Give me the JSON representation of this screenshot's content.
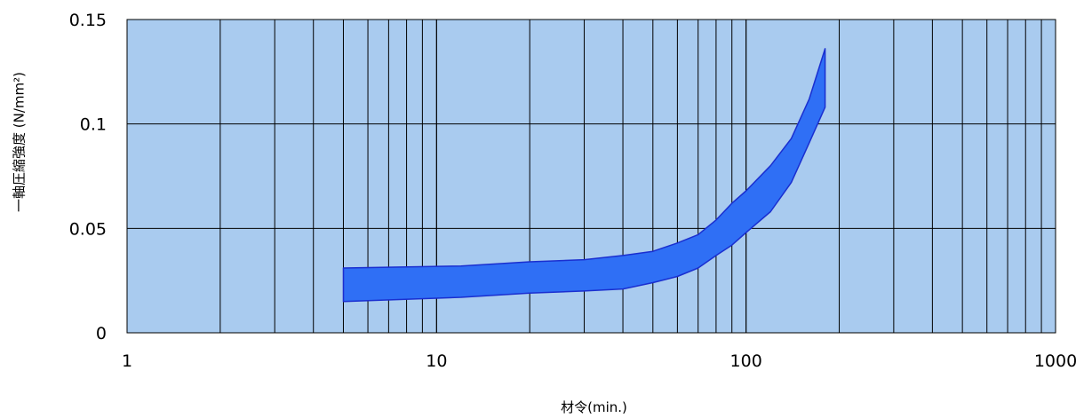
{
  "chart_data": {
    "type": "area",
    "x_scale": "log",
    "xlim": [
      1,
      1000
    ],
    "ylim": [
      0,
      0.15
    ],
    "x_ticks": [
      "1",
      "10",
      "100",
      "1000"
    ],
    "y_ticks": [
      "0",
      "0.05",
      "0.1",
      "0.15"
    ],
    "xlabel": "材令(min.)",
    "ylabel": "一軸圧縮強度 (N/mm²)",
    "grid": true,
    "plot_background": "#a9cbef",
    "band_fill": "#2f6ff5",
    "band_stroke": "#1a2fd0",
    "series": [
      {
        "role": "upper",
        "x": [
          5,
          12,
          20,
          30,
          40,
          50,
          60,
          70,
          80,
          90,
          100,
          120,
          140,
          160,
          180
        ],
        "values": [
          0.031,
          0.032,
          0.034,
          0.035,
          0.037,
          0.039,
          0.043,
          0.047,
          0.054,
          0.062,
          0.068,
          0.08,
          0.093,
          0.112,
          0.136
        ]
      },
      {
        "role": "lower",
        "x": [
          5,
          12,
          20,
          30,
          40,
          50,
          60,
          70,
          80,
          90,
          100,
          120,
          140,
          160,
          180
        ],
        "values": [
          0.015,
          0.017,
          0.019,
          0.02,
          0.021,
          0.024,
          0.027,
          0.031,
          0.037,
          0.042,
          0.048,
          0.058,
          0.072,
          0.091,
          0.108
        ]
      }
    ]
  }
}
